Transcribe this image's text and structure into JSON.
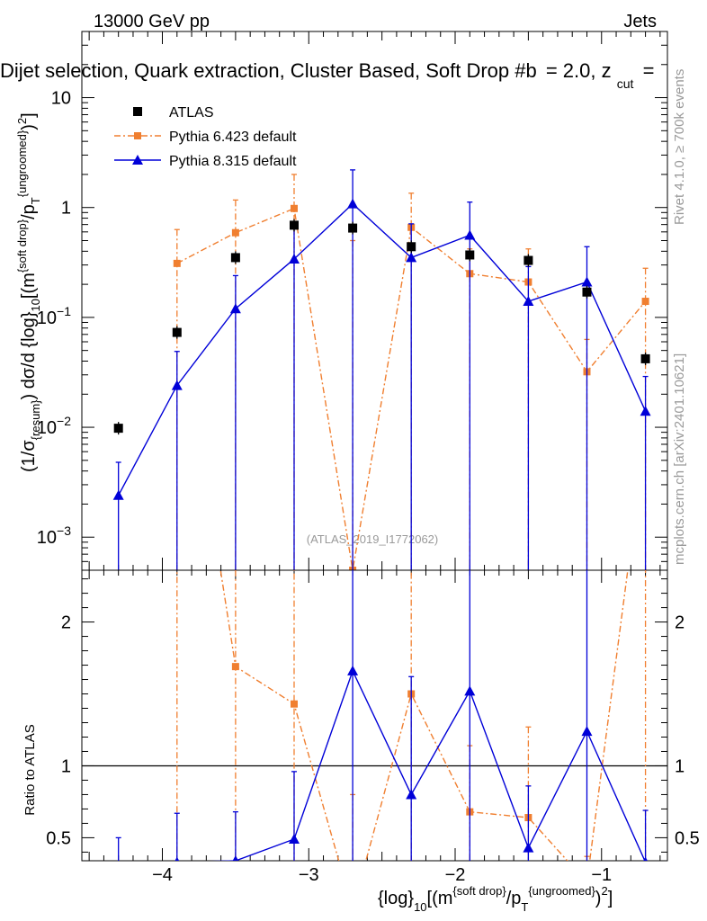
{
  "header": {
    "energy_label": "13000 GeV pp",
    "category_label": "Jets",
    "plot_title": "Dijet selection, Quark extraction, Cluster Based, Soft Drop #b = 2.0, z_cut =",
    "title_part_main": "Dijet selection, Quark extraction, Cluster Based, Soft Drop #b",
    "title_part_eq": "= 2.0, z",
    "title_part_cut": "cut",
    "title_part_end": "="
  },
  "side_labels": {
    "rivet": "Rivet 4.1.0, ≥ 700k events",
    "mcplots": "mcplots.cern.ch [arXiv:2401.10621]"
  },
  "watermark": "(ATLAS_2019_I1772062)",
  "axes": {
    "upper_ylabel": "(1/σ{resum}) dσ/d {log}10[(m{soft drop}/pT{ungroomed})2]",
    "lower_ylabel": "Ratio to ATLAS",
    "xlabel": "{log}10[(m{soft drop}/pT{ungroomed})2]",
    "x_range": [
      -4.55,
      -0.55
    ],
    "upper_y_range": [
      0.0005,
      40
    ],
    "lower_y_range": [
      0.34,
      2.36
    ],
    "x_ticks": [
      -4,
      -3,
      -2,
      -1
    ],
    "x_tick_labels": [
      "−4",
      "−3",
      "−2",
      "−1"
    ],
    "upper_y_ticks": [
      0.001,
      0.01,
      0.1,
      1,
      10
    ],
    "lower_y_ticks": [
      0.5,
      1,
      2
    ],
    "lower_y_tick_labels": [
      "0.5",
      "1",
      "2"
    ]
  },
  "legend": [
    {
      "label": "ATLAS",
      "color": "#000000",
      "marker": "square"
    },
    {
      "label": "Pythia 6.423 default",
      "color": "#f07f30",
      "marker": "square"
    },
    {
      "label": "Pythia 8.315 default",
      "color": "#0000d8",
      "marker": "triangle"
    }
  ],
  "chart_data": [
    {
      "type": "scatter",
      "title": "Dijet selection, Quark extraction, Cluster Based, Soft Drop #b = 2.0, z_cut =",
      "xlabel": "{log}10[(m{soft drop}/pT{ungroomed})2]",
      "ylabel": "(1/σ{resum}) dσ/d {log}10[(m{soft drop}/pT{ungroomed})2]",
      "yscale": "log",
      "x": [
        -4.3,
        -3.9,
        -3.5,
        -3.1,
        -2.7,
        -2.3,
        -1.9,
        -1.5,
        -1.1,
        -0.7
      ],
      "series": [
        {
          "name": "ATLAS",
          "values": [
            0.0098,
            0.073,
            0.35,
            0.69,
            0.65,
            0.44,
            0.37,
            0.33,
            0.17,
            0.042
          ]
        },
        {
          "name": "Pythia 6.423 default",
          "values": [
            null,
            0.31,
            0.59,
            0.98,
            0.0005,
            0.66,
            0.25,
            0.21,
            0.032,
            0.14
          ],
          "err_up": [
            null,
            0.63,
            1.17,
            2.0,
            0.5,
            1.35,
            0.42,
            0.42,
            0.063,
            0.28
          ],
          "err_down": [
            null,
            0.0005,
            0.0005,
            0.0005,
            0.0005,
            0.0005,
            0.0005,
            0.0005,
            0.0005,
            0.0005
          ]
        },
        {
          "name": "Pythia 8.315 default",
          "values": [
            0.0024,
            0.024,
            0.12,
            0.34,
            1.08,
            0.35,
            0.56,
            0.14,
            0.21,
            0.014
          ],
          "err_up": [
            0.0048,
            0.049,
            0.24,
            0.66,
            2.2,
            0.71,
            1.12,
            0.29,
            0.44,
            0.029
          ],
          "err_down": [
            0.0005,
            0.0005,
            0.0005,
            0.0005,
            0.0005,
            0.0005,
            0.0005,
            0.0005,
            0.0005,
            0.0005
          ]
        }
      ]
    },
    {
      "type": "line",
      "ylabel": "Ratio to ATLAS",
      "x": [
        -4.3,
        -3.9,
        -3.5,
        -3.1,
        -2.7,
        -2.3,
        -1.9,
        -1.5,
        -1.1,
        -0.7
      ],
      "reference_line": 1,
      "series": [
        {
          "name": "Pythia 6.423 default",
          "values": [
            null,
            4.3,
            1.69,
            1.43,
            0.001,
            1.5,
            0.68,
            0.64,
            0.19,
            3.3
          ],
          "err_up": [
            null,
            8.6,
            3.3,
            2.9,
            0.8,
            3.0,
            1.14,
            1.27,
            0.37,
            6.7
          ],
          "err_down": [
            null,
            0.001,
            0.001,
            0.001,
            0.001,
            0.001,
            0.001,
            0.001,
            0.001,
            0.001
          ]
        },
        {
          "name": "Pythia 8.315 default",
          "values": [
            0.25,
            0.33,
            0.34,
            0.49,
            1.66,
            0.8,
            1.52,
            0.43,
            1.24,
            0.33
          ],
          "err_up": [
            0.5,
            0.67,
            0.68,
            0.96,
            3.3,
            1.62,
            3.0,
            0.86,
            2.5,
            0.69
          ],
          "err_down": [
            0.001,
            0.001,
            0.001,
            0.001,
            0.001,
            0.001,
            0.001,
            0.001,
            0.001,
            0.001
          ]
        }
      ]
    }
  ]
}
